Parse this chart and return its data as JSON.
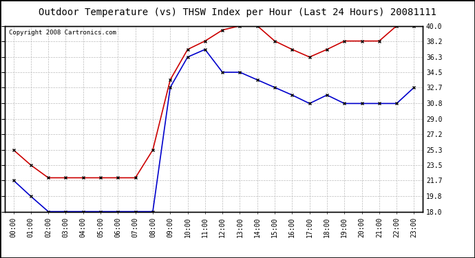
{
  "title": "Outdoor Temperature (vs) THSW Index per Hour (Last 24 Hours) 20081111",
  "copyright": "Copyright 2008 Cartronics.com",
  "hours": [
    "00:00",
    "01:00",
    "02:00",
    "03:00",
    "04:00",
    "05:00",
    "06:00",
    "07:00",
    "08:00",
    "09:00",
    "10:00",
    "11:00",
    "12:00",
    "13:00",
    "14:00",
    "15:00",
    "16:00",
    "17:00",
    "18:00",
    "19:00",
    "20:00",
    "21:00",
    "22:00",
    "23:00"
  ],
  "thsw": [
    25.3,
    23.5,
    22.0,
    22.0,
    22.0,
    22.0,
    22.0,
    22.0,
    25.3,
    33.6,
    37.2,
    38.2,
    39.5,
    40.0,
    40.0,
    38.2,
    37.2,
    36.3,
    37.2,
    38.2,
    38.2,
    38.2,
    40.0,
    40.0
  ],
  "outdoor_temp": [
    21.7,
    19.8,
    18.0,
    18.0,
    18.0,
    18.0,
    18.0,
    18.0,
    18.0,
    32.7,
    36.3,
    37.2,
    34.5,
    34.5,
    33.6,
    32.7,
    31.8,
    30.8,
    31.8,
    30.8,
    30.8,
    30.8,
    30.8,
    32.7
  ],
  "thsw_color": "#cc0000",
  "temp_color": "#0000cc",
  "marker_size": 3.5,
  "line_width": 1.2,
  "ylim": [
    18.0,
    40.0
  ],
  "yticks": [
    18.0,
    19.8,
    21.7,
    23.5,
    25.3,
    27.2,
    29.0,
    30.8,
    32.7,
    34.5,
    36.3,
    38.2,
    40.0
  ],
  "background_color": "#ffffff",
  "grid_color": "#bbbbbb",
  "title_fontsize": 10,
  "copyright_fontsize": 6.5,
  "tick_fontsize": 7,
  "outer_border_color": "#000000"
}
